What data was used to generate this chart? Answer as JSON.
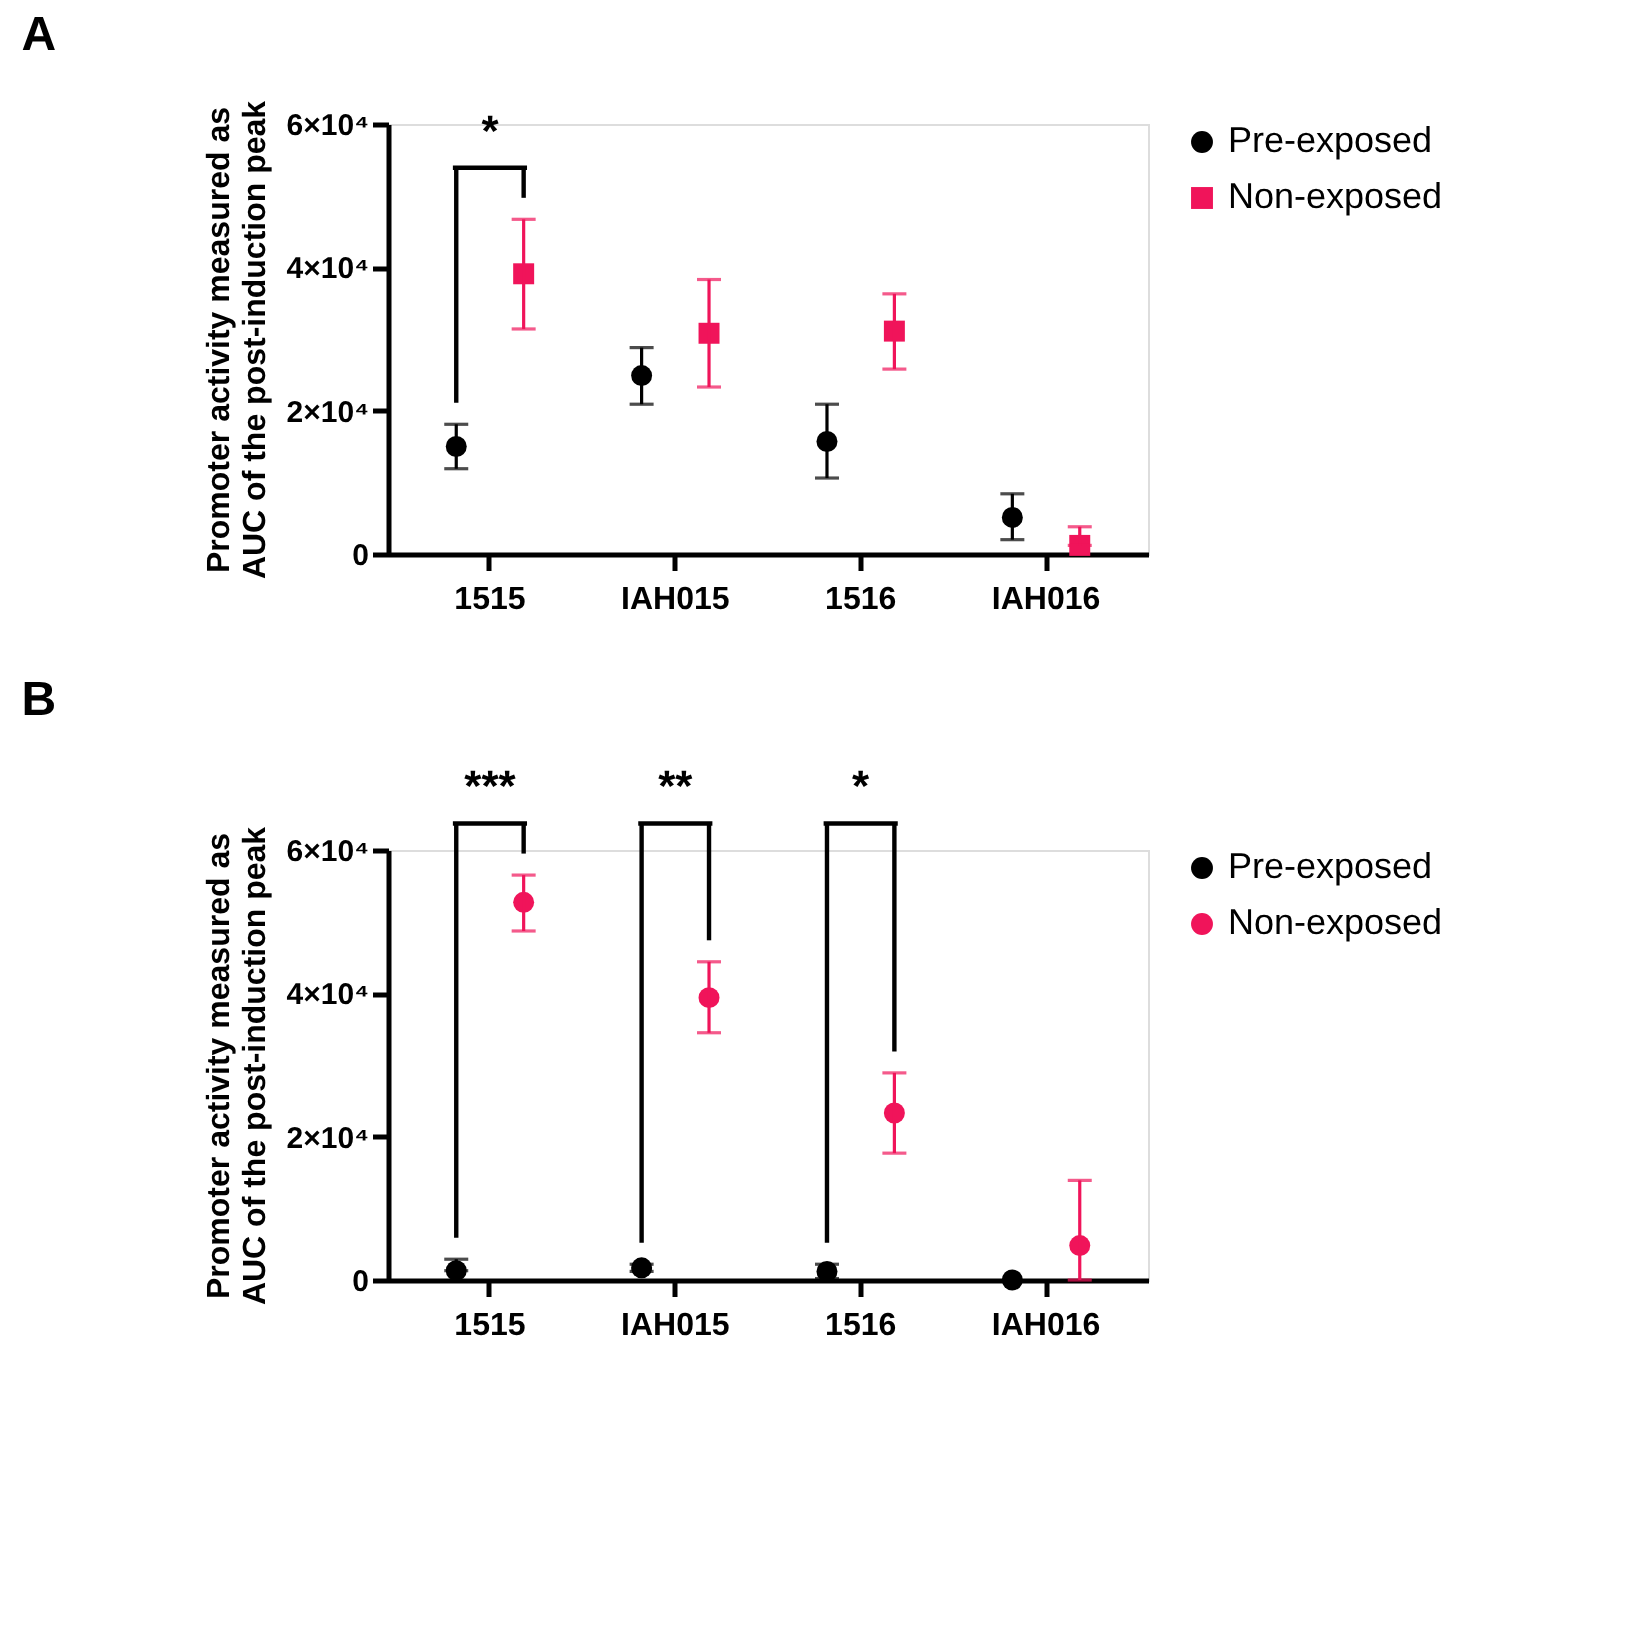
{
  "chart_data": [
    {
      "type": "scatter",
      "title": "A",
      "ylabel": "Promoter activity measured as AUC of the post-induction peak",
      "categories": [
        "1515",
        "IAH015",
        "1516",
        "IAH016"
      ],
      "ylim": [
        0,
        60000
      ],
      "yticks": [
        {
          "value": 0,
          "label": "0"
        },
        {
          "value": 20000,
          "label": "2×10⁴"
        },
        {
          "value": 40000,
          "label": "4×10⁴"
        },
        {
          "value": 60000,
          "label": "6×10⁴"
        }
      ],
      "grid": false,
      "legend": "top right",
      "series": [
        {
          "name": "Pre-exposed",
          "color": "#000000",
          "marker": "circle",
          "values": [
            15000,
            24900,
            15700,
            5100
          ],
          "errors": [
            [
              11900,
              18100
            ],
            [
              20900,
              28800
            ],
            [
              10600,
              20900
            ],
            [
              2000,
              8400
            ]
          ]
        },
        {
          "name": "Non-exposed",
          "color": "#f0145a",
          "marker": "square",
          "values": [
            39100,
            30800,
            31100,
            1200
          ],
          "errors": [
            [
              31400,
              46700
            ],
            [
              23300,
              38300
            ],
            [
              25800,
              36300
            ],
            [
              1200,
              3800
            ]
          ]
        }
      ],
      "annotations": [
        "*"
      ]
    },
    {
      "type": "scatter",
      "title": "B",
      "ylabel": "Promoter activity measured as AUC of the post-induction peak",
      "categories": [
        "1515",
        "IAH015",
        "1516",
        "IAH016"
      ],
      "ylim": [
        0,
        60000
      ],
      "yticks": [
        {
          "value": 0,
          "label": "0"
        },
        {
          "value": 20000,
          "label": "2×10⁴"
        },
        {
          "value": 40000,
          "label": "4×10⁴"
        },
        {
          "value": 60000,
          "label": "6×10⁴"
        }
      ],
      "grid": false,
      "legend": "top right",
      "series": [
        {
          "name": "Pre-exposed",
          "color": "#000000",
          "marker": "circle",
          "values": [
            1300,
            1700,
            1200,
            0
          ],
          "errors": [
            [
              1300,
              2900
            ],
            [
              1200,
              2200
            ],
            [
              200,
              2200
            ],
            null
          ]
        },
        {
          "name": "Non-exposed",
          "color": "#f0145a",
          "marker": "circle",
          "values": [
            52700,
            39400,
            23300,
            4800
          ],
          "errors": [
            [
              48700,
              56500
            ],
            [
              34500,
              44400
            ],
            [
              17700,
              28900
            ],
            [
              0,
              13900
            ]
          ]
        }
      ],
      "annotations": [
        "***",
        "**",
        "*"
      ]
    }
  ]
}
